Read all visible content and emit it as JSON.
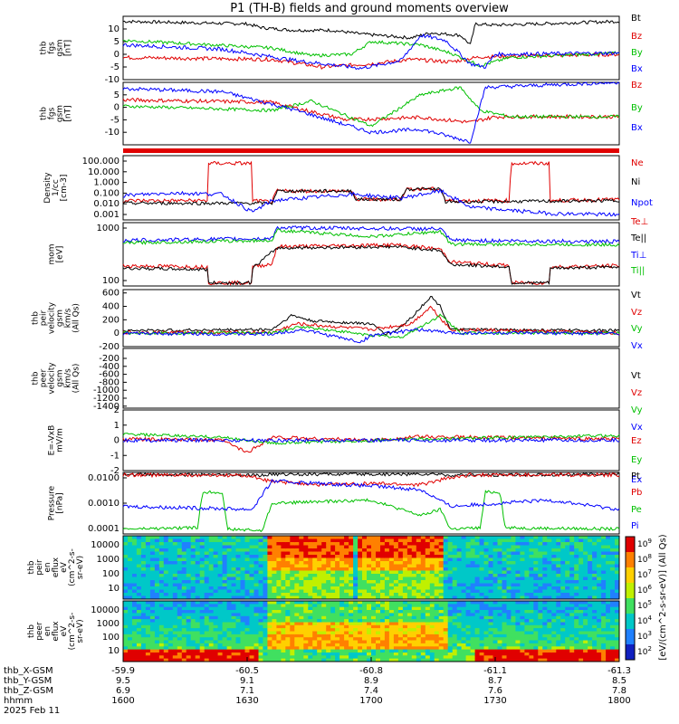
{
  "title": "P1 (TH-B) fields and ground moments overview",
  "colors": {
    "black": "#000000",
    "red": "#e00000",
    "green": "#00c000",
    "blue": "#0000ff"
  },
  "chart_data": [
    {
      "type": "line",
      "panel": "fgs",
      "ylabel": [
        "thb",
        "fgs",
        "gsm",
        "[nT]"
      ],
      "ylim": [
        -10,
        15
      ],
      "yticks": [
        -10,
        -5,
        0,
        5,
        10
      ],
      "series": [
        {
          "name": "Bt",
          "color": "black"
        },
        {
          "name": "Bz",
          "color": "red"
        },
        {
          "name": "By",
          "color": "green"
        },
        {
          "name": "Bx",
          "color": "blue"
        }
      ]
    },
    {
      "type": "line",
      "panel": "fgs2",
      "ylabel": [
        "thb",
        "fgs",
        "gsm",
        "[nT]"
      ],
      "ylim": [
        -15,
        10
      ],
      "yticks": [
        -10,
        -5,
        0,
        5
      ],
      "series": [
        {
          "name": "Bz",
          "color": "red"
        },
        {
          "name": "By",
          "color": "green"
        },
        {
          "name": "Bx",
          "color": "blue"
        }
      ]
    },
    {
      "type": "line",
      "panel": "density",
      "ylabel": [
        "Density",
        "1/cc",
        "[cm-3]"
      ],
      "log": true,
      "ylim": [
        0.001,
        100
      ],
      "yticks": [
        "100.000",
        "10.000",
        "1.000",
        "0.100",
        "0.010",
        "0.001"
      ],
      "series": [
        {
          "name": "Ne",
          "color": "red"
        },
        {
          "name": "Ni",
          "color": "black"
        },
        {
          "name": "Npot",
          "color": "blue"
        }
      ]
    },
    {
      "type": "line",
      "panel": "temperature",
      "ylabel": [
        "mom",
        "[eV]"
      ],
      "log": true,
      "ylim": [
        50,
        3000
      ],
      "yticks": [
        "1000",
        "100"
      ],
      "series": [
        {
          "name": "Te⊥",
          "color": "red"
        },
        {
          "name": "Te||",
          "color": "black"
        },
        {
          "name": "Ti⊥",
          "color": "blue"
        },
        {
          "name": "Ti||",
          "color": "green"
        }
      ]
    },
    {
      "type": "line",
      "panel": "ion_velocity",
      "ylabel": [
        "thb",
        "peir",
        "velocity",
        "gsm",
        "km/s",
        "(All Qs)"
      ],
      "ylim": [
        -200,
        650
      ],
      "yticks": [
        -200,
        0,
        200,
        400,
        600
      ],
      "series": [
        {
          "name": "Vt",
          "color": "black"
        },
        {
          "name": "Vz",
          "color": "red"
        },
        {
          "name": "Vy",
          "color": "green"
        },
        {
          "name": "Vx",
          "color": "blue"
        }
      ]
    },
    {
      "type": "line",
      "panel": "electron_velocity",
      "ylabel": [
        "thb",
        "peer",
        "velocity",
        "gsm",
        "km/s",
        "(All Qs)"
      ],
      "ylim": [
        -1450,
        50
      ],
      "yticks": [
        -200,
        -400,
        -600,
        -800,
        -1000,
        -1200,
        -1400
      ],
      "series": [
        {
          "name": "Vt",
          "color": "black"
        },
        {
          "name": "Vz",
          "color": "red"
        },
        {
          "name": "Vy",
          "color": "green"
        },
        {
          "name": "Vx",
          "color": "blue"
        }
      ]
    },
    {
      "type": "line",
      "panel": "efield",
      "ylabel": [
        "E=-VxB",
        "mV/m"
      ],
      "ylim": [
        -2,
        2
      ],
      "yticks": [
        -2,
        -1,
        0,
        1,
        2
      ],
      "series": [
        {
          "name": "Ez",
          "color": "red"
        },
        {
          "name": "Ey",
          "color": "green"
        },
        {
          "name": "Ex",
          "color": "blue"
        }
      ]
    },
    {
      "type": "line",
      "panel": "pressure",
      "ylabel": [
        "Pressure",
        "[nPa]"
      ],
      "log": true,
      "ylim": [
        0.0001,
        0.05
      ],
      "yticks": [
        "0.0100",
        "0.0010",
        "0.0001"
      ],
      "series": [
        {
          "name": "Pt",
          "color": "black"
        },
        {
          "name": "Pb",
          "color": "red"
        },
        {
          "name": "Pe",
          "color": "green"
        },
        {
          "name": "Pi",
          "color": "blue"
        }
      ]
    },
    {
      "type": "heatmap",
      "panel": "ion_spectrogram",
      "ylabel": [
        "thb",
        "peir",
        "en",
        "eflux",
        "eV",
        "(cm^2-s-",
        "sr-eV)"
      ],
      "log": true,
      "ylim": [
        7,
        30000
      ],
      "yticks": [
        "10000",
        "1000",
        "100",
        "10"
      ]
    },
    {
      "type": "heatmap",
      "panel": "electron_spectrogram",
      "ylabel": [
        "thb",
        "peer",
        "en",
        "eflux",
        "eV",
        "(cm^2-s-",
        "sr-eV)"
      ],
      "log": true,
      "ylim": [
        7,
        30000
      ],
      "yticks": [
        "10000",
        "1000",
        "100",
        "10"
      ]
    }
  ],
  "colorbar": {
    "label": "[eV/(cm^2-s-sr-eV)] (All Qs)",
    "ticks": [
      "10^9",
      "10^8",
      "10^7",
      "10^6",
      "10^5",
      "10^4",
      "10^3",
      "10^2"
    ]
  },
  "xaxis": {
    "rows": [
      {
        "label": "thb_X-GSM",
        "values": [
          "-59.9",
          "-60.5",
          "-60.8",
          "-61.1",
          "-61.3"
        ]
      },
      {
        "label": "thb_Y-GSM",
        "values": [
          "9.5",
          "9.1",
          "8.9",
          "8.7",
          "8.5"
        ]
      },
      {
        "label": "thb_Z-GSM",
        "values": [
          "6.9",
          "7.1",
          "7.4",
          "7.6",
          "7.8"
        ]
      },
      {
        "label": "hhmm",
        "values": [
          "1600",
          "1630",
          "1700",
          "1730",
          "1800"
        ]
      }
    ],
    "date": "2025 Feb 11"
  }
}
